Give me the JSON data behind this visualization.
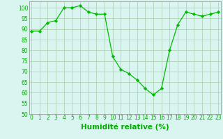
{
  "x": [
    0,
    1,
    2,
    3,
    4,
    5,
    6,
    7,
    8,
    9,
    10,
    11,
    12,
    13,
    14,
    15,
    16,
    17,
    18,
    19,
    20,
    21,
    22,
    23
  ],
  "y": [
    89,
    89,
    93,
    94,
    100,
    100,
    101,
    98,
    97,
    97,
    77,
    71,
    69,
    66,
    62,
    59,
    62,
    80,
    92,
    98,
    97,
    96,
    97,
    98
  ],
  "line_color": "#00bb00",
  "marker": "D",
  "marker_size": 2.2,
  "bg_color": "#d8f5f0",
  "grid_color": "#aaccaa",
  "xlabel": "Humidité relative (%)",
  "xlabel_color": "#00aa00",
  "ylim": [
    50,
    103
  ],
  "yticks": [
    50,
    55,
    60,
    65,
    70,
    75,
    80,
    85,
    90,
    95,
    100
  ],
  "xticks": [
    0,
    1,
    2,
    3,
    4,
    5,
    6,
    7,
    8,
    9,
    10,
    11,
    12,
    13,
    14,
    15,
    16,
    17,
    18,
    19,
    20,
    21,
    22,
    23
  ],
  "tick_color": "#00aa00",
  "tick_fontsize": 5.5,
  "xlabel_fontsize": 7.5
}
